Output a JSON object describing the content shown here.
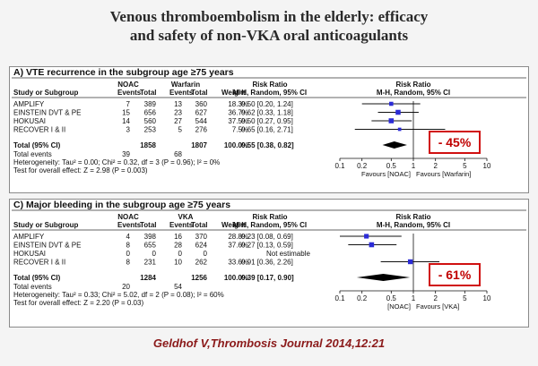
{
  "slide": {
    "title_line1": "Venous thromboembolism in the elderly: efficacy",
    "title_line2": "and safety of non-VKA oral anticoagulants",
    "citation": "Geldhof V,Thrombosis Journal 2014,12:21"
  },
  "colors": {
    "marker": "#2b2bd6",
    "highlight_border": "#d01010",
    "highlight_text": "#c00000",
    "citation": "#8b1a1a"
  },
  "chart_data": [
    {
      "type": "forest",
      "panel_title": "A) VTE recurrence in the subgroup age ≥75 years",
      "group1_name": "NOAC",
      "group2_name": "Warfarin",
      "col_study": "Study or Subgroup",
      "col_events": "Events",
      "col_total": "Total",
      "col_weight": "Weight",
      "rr_header1": "Risk Ratio",
      "rr_header2": "M-H, Random, 95% CI",
      "plot_header1": "Risk Ratio",
      "plot_header2": "M-H, Random, 95% CI",
      "studies": [
        {
          "name": "AMPLIFY",
          "e1": "7",
          "n1": "389",
          "e2": "13",
          "n2": "360",
          "weight": "18.3%",
          "ci_text": "0.50 [0.20, 1.24]",
          "rr": 0.5,
          "lo": 0.2,
          "hi": 1.24,
          "w": 18.3
        },
        {
          "name": "EINSTEIN DVT & PE",
          "e1": "15",
          "n1": "656",
          "e2": "23",
          "n2": "627",
          "weight": "36.7%",
          "ci_text": "0.62 [0.33, 1.18]",
          "rr": 0.62,
          "lo": 0.33,
          "hi": 1.18,
          "w": 36.7
        },
        {
          "name": "HOKUSAI",
          "e1": "14",
          "n1": "560",
          "e2": "27",
          "n2": "544",
          "weight": "37.5%",
          "ci_text": "0.50 [0.27, 0.95]",
          "rr": 0.5,
          "lo": 0.27,
          "hi": 0.95,
          "w": 37.5
        },
        {
          "name": "RECOVER I & II",
          "e1": "3",
          "n1": "253",
          "e2": "5",
          "n2": "276",
          "weight": "7.5%",
          "ci_text": "0.65 [0.16, 2.71]",
          "rr": 0.65,
          "lo": 0.16,
          "hi": 2.71,
          "w": 7.5
        }
      ],
      "total": {
        "label": "Total (95% CI)",
        "n1": "1858",
        "n2": "1807",
        "weight": "100.0%",
        "ci_text": "0.55 [0.38, 0.82]",
        "rr": 0.55,
        "lo": 0.38,
        "hi": 0.82
      },
      "total_events": {
        "label": "Total events",
        "e1": "39",
        "e2": "68"
      },
      "heterogeneity": "Heterogeneity: Tau² = 0.00; Chi² = 0.32, df = 3 (P = 0.96); I² = 0%",
      "overall_effect": "Test for overall effect: Z = 2.98 (P = 0.003)",
      "axis_ticks": [
        "0.1",
        "0.2",
        "0.5",
        "1",
        "2",
        "5",
        "10"
      ],
      "axis_values": [
        0.1,
        0.2,
        0.5,
        1,
        2,
        5,
        10
      ],
      "axis_scale": "log",
      "favours_left": "Favours [NOAC]",
      "favours_right": "Favours [Warfarin]",
      "highlight": "- 45%"
    },
    {
      "type": "forest",
      "panel_title": "C) Major bleeding in the subgroup age ≥75 years",
      "group1_name": "NOAC",
      "group2_name": "VKA",
      "col_study": "Study or Subgroup",
      "col_events": "Events",
      "col_total": "Total",
      "col_weight": "Weight",
      "rr_header1": "Risk Ratio",
      "rr_header2": "M-H, Random, 95% CI",
      "plot_header1": "Risk Ratio",
      "plot_header2": "M-H, Random, 95% CI",
      "studies": [
        {
          "name": "AMPLIFY",
          "e1": "4",
          "n1": "398",
          "e2": "16",
          "n2": "370",
          "weight": "28.8%",
          "ci_text": "0.23 [0.08, 0.69]",
          "rr": 0.23,
          "lo": 0.08,
          "hi": 0.69,
          "w": 28.8
        },
        {
          "name": "EINSTEIN DVT & PE",
          "e1": "8",
          "n1": "655",
          "e2": "28",
          "n2": "624",
          "weight": "37.6%",
          "ci_text": "0.27 [0.13, 0.59]",
          "rr": 0.27,
          "lo": 0.13,
          "hi": 0.59,
          "w": 37.6
        },
        {
          "name": "HOKUSAI",
          "e1": "0",
          "n1": "0",
          "e2": "0",
          "n2": "0",
          "weight": "",
          "ci_text": "Not estimable",
          "rr": null,
          "lo": null,
          "hi": null,
          "w": 0
        },
        {
          "name": "RECOVER I & II",
          "e1": "8",
          "n1": "231",
          "e2": "10",
          "n2": "262",
          "weight": "33.6%",
          "ci_text": "0.91 [0.36, 2.26]",
          "rr": 0.91,
          "lo": 0.36,
          "hi": 2.26,
          "w": 33.6
        }
      ],
      "total": {
        "label": "Total (95% CI)",
        "n1": "1284",
        "n2": "1256",
        "weight": "100.0%",
        "ci_text": "0.39 [0.17, 0.90]",
        "rr": 0.39,
        "lo": 0.17,
        "hi": 0.9
      },
      "total_events": {
        "label": "Total events",
        "e1": "20",
        "e2": "54"
      },
      "heterogeneity": "Heterogeneity: Tau² = 0.33; Chi² = 5.02, df = 2 (P = 0.08); I² = 60%",
      "overall_effect": "Test for overall effect: Z = 2.20 (P = 0.03)",
      "axis_ticks": [
        "0.1",
        "0.2",
        "0.5",
        "1",
        "2",
        "5",
        "10"
      ],
      "axis_values": [
        0.1,
        0.2,
        0.5,
        1,
        2,
        5,
        10
      ],
      "axis_scale": "log",
      "favours_left": "[NOAC]",
      "favours_right": "Favours [VKA]",
      "highlight": "- 61%"
    }
  ]
}
